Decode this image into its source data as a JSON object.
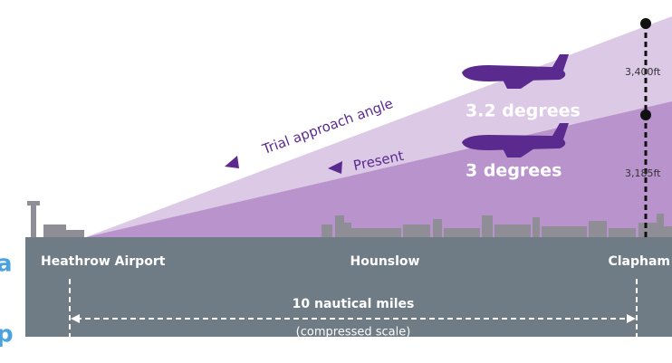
{
  "diagram": {
    "angles": {
      "trial_label": "Trial approach angle",
      "present_label": "Present",
      "trial_degrees": "3.2 degrees",
      "present_degrees": "3 degrees"
    },
    "heights": {
      "trial": "3,400ft",
      "present": "3,185ft"
    },
    "places": {
      "start": "Heathrow Airport",
      "middle": "Hounslow",
      "end": "Clapham"
    },
    "distance": {
      "label": "10 nautical miles",
      "note": "(compressed scale)"
    },
    "cropped": {
      "top": "a",
      "bottom": "p"
    }
  }
}
